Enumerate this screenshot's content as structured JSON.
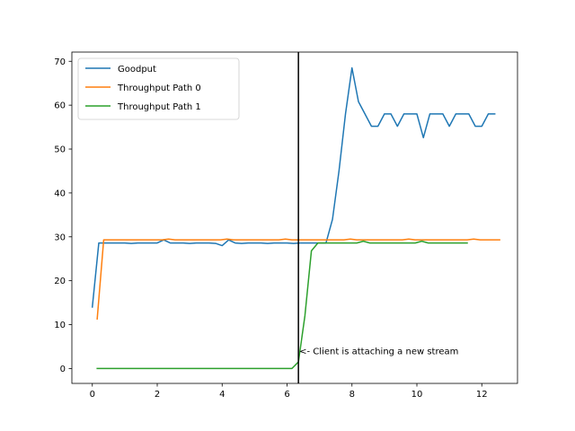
{
  "chart_data": {
    "type": "line",
    "xlim": [
      -0.63,
      13.1
    ],
    "ylim": [
      -3.4,
      72.1
    ],
    "x_ticks": [
      0,
      2,
      4,
      6,
      8,
      10,
      12
    ],
    "y_ticks": [
      0,
      10,
      20,
      30,
      40,
      50,
      60,
      70
    ],
    "grid": false,
    "legend_position": "upper-left",
    "vline_x": 6.35,
    "annotation": {
      "text": "<- Client is attaching a new stream",
      "x": 6.35,
      "y": 4
    },
    "series": [
      {
        "name": "Goodput",
        "color": "#1f77b4",
        "x": [
          0,
          0.2,
          0.4,
          0.6,
          0.8,
          1.0,
          1.2,
          1.4,
          1.6,
          1.8,
          2.0,
          2.2,
          2.4,
          2.6,
          2.8,
          3.0,
          3.2,
          3.4,
          3.6,
          3.8,
          4.0,
          4.2,
          4.4,
          4.6,
          4.8,
          5.0,
          5.2,
          5.4,
          5.6,
          5.8,
          6.0,
          6.2,
          6.4,
          6.6,
          6.8,
          7.0,
          7.2,
          7.4,
          7.6,
          7.8,
          8.0,
          8.2,
          8.4,
          8.6,
          8.8,
          9.0,
          9.2,
          9.4,
          9.6,
          9.8,
          10.0,
          10.2,
          10.4,
          10.6,
          10.8,
          11.0,
          11.2,
          11.4,
          11.6,
          11.8,
          12.0,
          12.2,
          12.4
        ],
        "y": [
          14,
          28.6,
          28.6,
          28.6,
          28.6,
          28.6,
          28.5,
          28.6,
          28.6,
          28.6,
          28.6,
          29.3,
          28.6,
          28.6,
          28.6,
          28.5,
          28.6,
          28.6,
          28.6,
          28.5,
          28.0,
          29.3,
          28.6,
          28.5,
          28.6,
          28.6,
          28.6,
          28.5,
          28.6,
          28.6,
          28.6,
          28.5,
          28.6,
          28.6,
          28.6,
          28.6,
          28.6,
          34,
          45,
          58,
          68.5,
          60.8,
          58,
          55.2,
          55.2,
          58,
          58,
          55.2,
          58,
          58,
          58,
          52.6,
          58,
          58,
          58,
          55.2,
          58,
          58,
          58,
          55.2,
          55.2,
          58,
          58
        ]
      },
      {
        "name": "Throughput Path 0",
        "color": "#ff7f0e",
        "x": [
          0.15,
          0.35,
          0.55,
          0.75,
          0.95,
          1.15,
          1.35,
          1.55,
          1.75,
          1.95,
          2.15,
          2.35,
          2.55,
          2.75,
          2.95,
          3.15,
          3.35,
          3.55,
          3.75,
          3.95,
          4.15,
          4.35,
          4.55,
          4.75,
          4.95,
          5.15,
          5.35,
          5.55,
          5.75,
          5.95,
          6.15,
          6.35,
          6.55,
          6.75,
          6.95,
          7.15,
          7.35,
          7.55,
          7.75,
          7.95,
          8.15,
          8.35,
          8.55,
          8.75,
          8.95,
          9.15,
          9.35,
          9.55,
          9.75,
          9.95,
          10.15,
          10.35,
          10.55,
          10.75,
          10.95,
          11.15,
          11.35,
          11.55,
          11.75,
          11.95,
          12.15,
          12.35,
          12.55
        ],
        "y": [
          11.3,
          29.3,
          29.3,
          29.3,
          29.3,
          29.3,
          29.3,
          29.3,
          29.3,
          29.3,
          29.3,
          29.5,
          29.3,
          29.3,
          29.3,
          29.3,
          29.3,
          29.3,
          29.3,
          29.3,
          29.5,
          29.3,
          29.3,
          29.3,
          29.3,
          29.3,
          29.3,
          29.3,
          29.3,
          29.5,
          29.3,
          29.3,
          29.3,
          29.3,
          29.3,
          29.3,
          29.3,
          29.3,
          29.3,
          29.5,
          29.3,
          29.3,
          29.3,
          29.3,
          29.3,
          29.3,
          29.3,
          29.3,
          29.5,
          29.3,
          29.3,
          29.3,
          29.3,
          29.3,
          29.3,
          29.3,
          29.3,
          29.3,
          29.5,
          29.3,
          29.3,
          29.3,
          29.3
        ]
      },
      {
        "name": "Throughput Path 1",
        "color": "#2ca02c",
        "x": [
          0.15,
          0.35,
          0.55,
          0.75,
          0.95,
          1.15,
          1.35,
          1.55,
          1.75,
          1.95,
          2.15,
          2.35,
          2.55,
          2.75,
          2.95,
          3.15,
          3.35,
          3.55,
          3.75,
          3.95,
          4.15,
          4.35,
          4.55,
          4.75,
          4.95,
          5.15,
          5.35,
          5.55,
          5.75,
          5.95,
          6.15,
          6.35,
          6.55,
          6.75,
          6.95,
          7.15,
          7.35,
          7.55,
          7.75,
          7.95,
          8.15,
          8.35,
          8.55,
          8.75,
          8.95,
          9.15,
          9.35,
          9.55,
          9.75,
          9.95,
          10.15,
          10.35,
          10.55,
          10.75,
          10.95,
          11.15,
          11.35,
          11.55
        ],
        "y": [
          0,
          0,
          0,
          0,
          0,
          0,
          0,
          0,
          0,
          0,
          0,
          0,
          0,
          0,
          0,
          0,
          0,
          0,
          0,
          0,
          0,
          0,
          0,
          0,
          0,
          0,
          0,
          0,
          0,
          0,
          0,
          1.5,
          12,
          26.8,
          28.6,
          28.6,
          28.6,
          28.6,
          28.6,
          28.6,
          28.6,
          29.0,
          28.6,
          28.6,
          28.6,
          28.6,
          28.6,
          28.6,
          28.6,
          28.6,
          29.0,
          28.6,
          28.6,
          28.6,
          28.6,
          28.6,
          28.6,
          28.6
        ]
      }
    ]
  }
}
